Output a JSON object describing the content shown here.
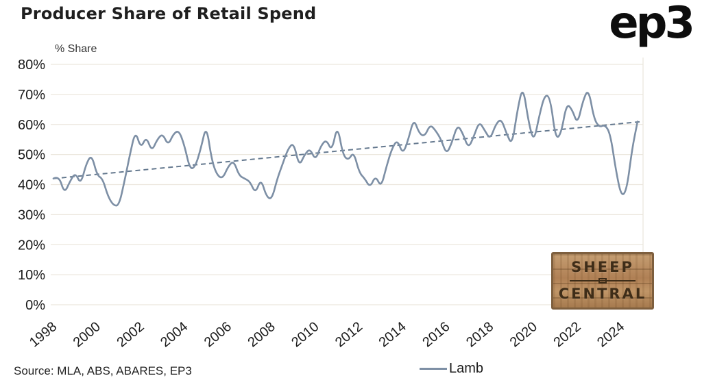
{
  "header": {
    "title": "Producer Share of Retail Spend",
    "brand": "ep3"
  },
  "chart_data": {
    "type": "line",
    "title": "Producer Share of Retail Spend",
    "ylabel": "% Share",
    "xlabel": "",
    "ylim": [
      0,
      80
    ],
    "x_range": [
      1998,
      2025
    ],
    "grid": "horizontal",
    "y_tick_values": [
      0,
      10,
      20,
      30,
      40,
      50,
      60,
      70,
      80
    ],
    "y_ticks": [
      "0%",
      "10%",
      "20%",
      "30%",
      "40%",
      "50%",
      "60%",
      "70%",
      "80%"
    ],
    "x_tick_values": [
      1998,
      2000,
      2002,
      2004,
      2006,
      2008,
      2010,
      2012,
      2014,
      2016,
      2018,
      2020,
      2022,
      2024
    ],
    "x_ticks": [
      "1998",
      "2000",
      "2002",
      "2004",
      "2006",
      "2008",
      "2010",
      "2012",
      "2014",
      "2016",
      "2018",
      "2020",
      "2022",
      "2024"
    ],
    "legend": {
      "position": "bottom-center",
      "entries": [
        {
          "label": "Lamb",
          "color": "#7d8fa5"
        }
      ]
    },
    "series": [
      {
        "name": "Lamb",
        "color": "#7d8fa5",
        "frequency": "quarterly",
        "x_start": 1998.0,
        "x_step": 0.25,
        "values": [
          42,
          43,
          37,
          41,
          44,
          40,
          47,
          50,
          43,
          42,
          36,
          33,
          33,
          41,
          50,
          58,
          52,
          56,
          51,
          55,
          57,
          53,
          57,
          58,
          53,
          45,
          46,
          52,
          60,
          48,
          43,
          42,
          46,
          48,
          43,
          42,
          41,
          37,
          42,
          36,
          35,
          42,
          47,
          52,
          54,
          46,
          50,
          52,
          48,
          53,
          55,
          51,
          60,
          50,
          48,
          51,
          44,
          42,
          39,
          43,
          39,
          46,
          52,
          55,
          50,
          55,
          62,
          57,
          56,
          60,
          58,
          55,
          50,
          54,
          60,
          57,
          52,
          56,
          61,
          58,
          55,
          60,
          62,
          57,
          53,
          65,
          73,
          61,
          54,
          63,
          70,
          69,
          55,
          57,
          67,
          65,
          60,
          68,
          72,
          62,
          59,
          60,
          57,
          45,
          36,
          38,
          52,
          61
        ]
      }
    ],
    "trend_line": {
      "color": "#64788e",
      "dash": true,
      "x": [
        1998,
        2025
      ],
      "y": [
        42,
        61
      ]
    }
  },
  "source_note": "Source: MLA, ABS, ABARES, EP3",
  "watermark": {
    "line1": "SHEEP",
    "line2": "CENTRAL"
  },
  "colors": {
    "line": "#7d8fa5",
    "trend": "#64788e",
    "grid": "#ece7de",
    "axis_text": "#1a1a1a"
  }
}
